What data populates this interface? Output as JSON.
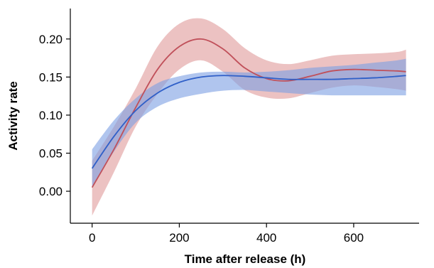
{
  "chart_data": {
    "type": "line",
    "title": "",
    "xlabel": "Time after release (h)",
    "ylabel": "Activity rate",
    "xlim": [
      -50,
      750
    ],
    "ylim": [
      -0.042,
      0.24
    ],
    "xticks": [
      0,
      200,
      400,
      600
    ],
    "yticks": [
      0.0,
      0.05,
      0.1,
      0.15,
      0.2
    ],
    "xtick_labels": [
      "0",
      "200",
      "400",
      "600"
    ],
    "ytick_labels": [
      "0.00",
      "0.05",
      "0.10",
      "0.15",
      "0.20"
    ],
    "grid": false,
    "legend": "none",
    "series": [
      {
        "color": "#c0505a",
        "band_color": "#e09a9a",
        "x": [
          0,
          50,
          100,
          150,
          200,
          250,
          300,
          350,
          400,
          450,
          500,
          550,
          600,
          650,
          700,
          720
        ],
        "y": [
          0.005,
          0.055,
          0.11,
          0.16,
          0.19,
          0.2,
          0.187,
          0.162,
          0.148,
          0.145,
          0.151,
          0.158,
          0.16,
          0.159,
          0.158,
          0.157
        ],
        "lower": [
          -0.032,
          0.025,
          0.085,
          0.128,
          0.16,
          0.172,
          0.157,
          0.133,
          0.123,
          0.122,
          0.129,
          0.136,
          0.139,
          0.137,
          0.134,
          0.132
        ],
        "upper": [
          0.04,
          0.085,
          0.135,
          0.19,
          0.22,
          0.227,
          0.213,
          0.188,
          0.172,
          0.167,
          0.172,
          0.178,
          0.18,
          0.181,
          0.183,
          0.186
        ]
      },
      {
        "color": "#2f5fc8",
        "band_color": "#7b9fe3",
        "x": [
          0,
          50,
          100,
          150,
          200,
          250,
          300,
          350,
          400,
          450,
          500,
          550,
          600,
          650,
          700,
          720
        ],
        "y": [
          0.03,
          0.072,
          0.106,
          0.129,
          0.143,
          0.15,
          0.152,
          0.151,
          0.149,
          0.147,
          0.147,
          0.147,
          0.148,
          0.149,
          0.151,
          0.152
        ],
        "lower": [
          0.005,
          0.052,
          0.09,
          0.111,
          0.122,
          0.128,
          0.132,
          0.133,
          0.131,
          0.129,
          0.127,
          0.126,
          0.126,
          0.126,
          0.126,
          0.126
        ],
        "upper": [
          0.055,
          0.093,
          0.122,
          0.142,
          0.151,
          0.156,
          0.157,
          0.156,
          0.157,
          0.159,
          0.162,
          0.164,
          0.166,
          0.169,
          0.172,
          0.174
        ]
      }
    ]
  }
}
